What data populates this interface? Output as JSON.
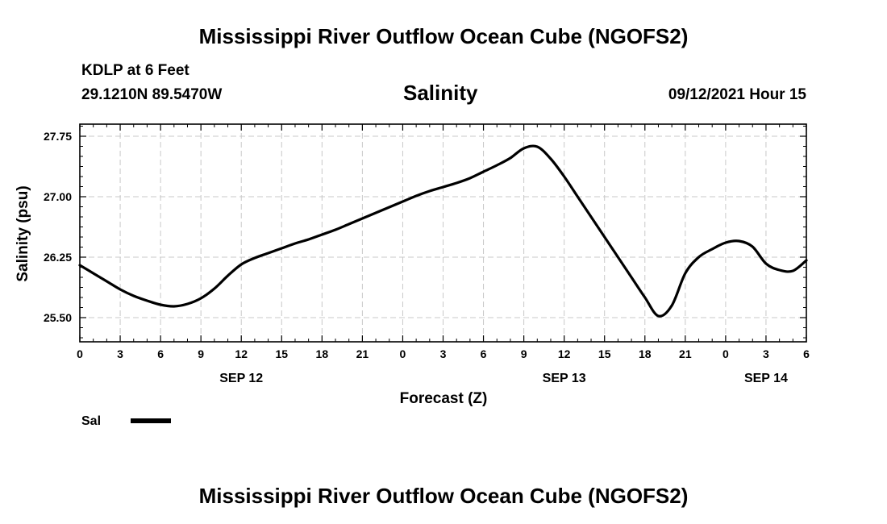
{
  "page": {
    "title_top": "Mississippi River Outflow Ocean Cube (NGOFS2)",
    "title_bottom": "Mississippi River Outflow Ocean Cube (NGOFS2)",
    "station": "KDLP at 6 Feet",
    "coords": "29.1210N  89.5470W",
    "variable": "Salinity",
    "timestamp": "09/12/2021 Hour 15"
  },
  "chart_data": {
    "type": "line",
    "title": "Salinity",
    "xlabel": "Forecast (Z)",
    "ylabel": "Salinity (psu)",
    "xlim": [
      0,
      54
    ],
    "ylim": [
      25.2,
      27.9
    ],
    "x_ticks": [
      0,
      3,
      6,
      9,
      12,
      15,
      18,
      21,
      24,
      27,
      30,
      33,
      36,
      39,
      42,
      45,
      48,
      51,
      54
    ],
    "x_tick_labels": [
      "0",
      "3",
      "6",
      "9",
      "12",
      "15",
      "18",
      "21",
      "0",
      "3",
      "6",
      "9",
      "12",
      "15",
      "18",
      "21",
      "0",
      "3",
      "6"
    ],
    "date_labels": [
      {
        "x": 12,
        "label": "SEP 12"
      },
      {
        "x": 36,
        "label": "SEP 13"
      },
      {
        "x": 51,
        "label": "SEP 14"
      }
    ],
    "y_ticks": [
      25.5,
      26.25,
      27.0,
      27.75
    ],
    "y_tick_labels": [
      "25.50",
      "26.25",
      "27.00",
      "27.75"
    ],
    "grid": true,
    "legend": [
      {
        "name": "Sal",
        "color": "#000000"
      }
    ],
    "series": [
      {
        "name": "Sal",
        "color": "#000000",
        "x": [
          0,
          1,
          2,
          3,
          4,
          5,
          6,
          7,
          8,
          9,
          10,
          11,
          12,
          13,
          14,
          15,
          16,
          17,
          18,
          19,
          20,
          21,
          22,
          23,
          24,
          25,
          26,
          27,
          28,
          29,
          30,
          31,
          32,
          33,
          34,
          35,
          36,
          37,
          38,
          39,
          40,
          41,
          42,
          43,
          44,
          45,
          46,
          47,
          48,
          49,
          50,
          51,
          52,
          53,
          54
        ],
        "values": [
          26.15,
          26.05,
          25.95,
          25.85,
          25.77,
          25.71,
          25.66,
          25.64,
          25.67,
          25.74,
          25.86,
          26.02,
          26.16,
          26.24,
          26.3,
          26.36,
          26.42,
          26.47,
          26.53,
          26.59,
          26.66,
          26.73,
          26.8,
          26.87,
          26.94,
          27.01,
          27.07,
          27.12,
          27.17,
          27.23,
          27.31,
          27.39,
          27.48,
          27.6,
          27.62,
          27.47,
          27.25,
          27.0,
          26.75,
          26.5,
          26.25,
          26.0,
          25.75,
          25.52,
          25.65,
          26.05,
          26.25,
          26.35,
          26.43,
          26.45,
          26.38,
          26.17,
          26.09,
          26.08,
          26.21
        ]
      }
    ]
  }
}
